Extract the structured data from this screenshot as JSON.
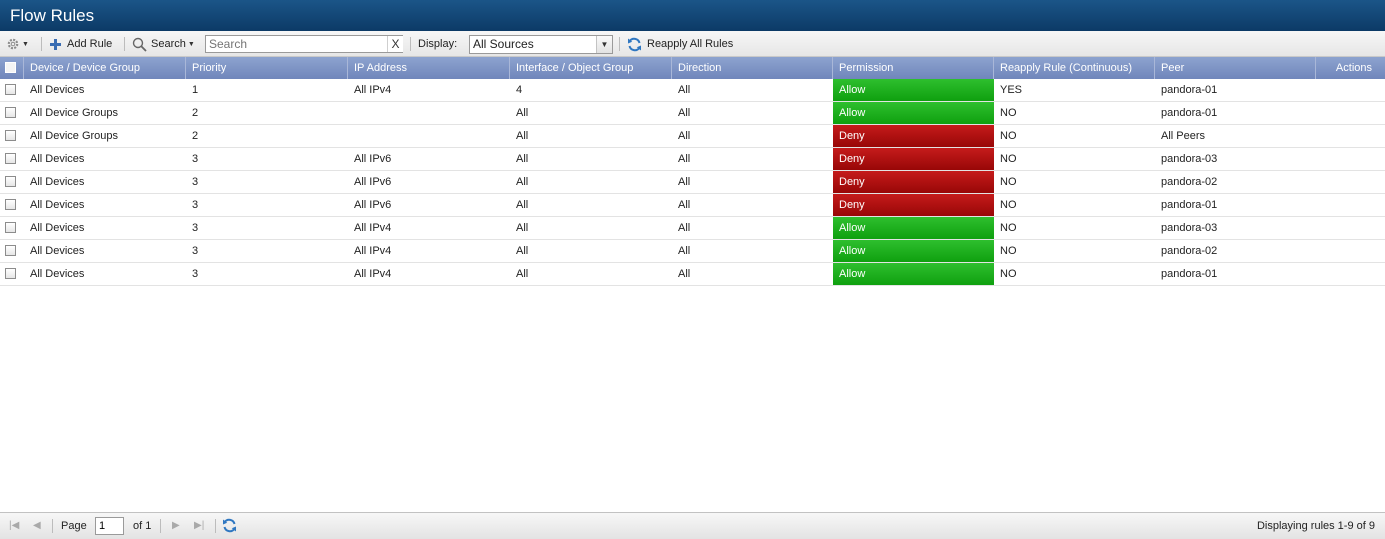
{
  "window": {
    "title": "Flow Rules"
  },
  "toolbar": {
    "settings_icon": "gear-icon",
    "add_rule_label": "Add Rule",
    "search_menu_label": "Search",
    "search_placeholder": "Search",
    "search_clear": "X",
    "display_label": "Display:",
    "display_value": "All Sources",
    "reapply_all_label": "Reapply All Rules"
  },
  "columns": [
    "Device / Device Group",
    "Priority",
    "IP Address",
    "Interface / Object Group",
    "Direction",
    "Permission",
    "Reapply Rule (Continuous)",
    "Peer",
    "Actions"
  ],
  "rows": [
    {
      "device": "All Devices",
      "priority": "1",
      "ip": "All IPv4",
      "iface": "4",
      "direction": "All",
      "permission": "Allow",
      "reapply": "YES",
      "peer": "pandora-01"
    },
    {
      "device": "All Device Groups",
      "priority": "2",
      "ip": "",
      "iface": "All",
      "direction": "All",
      "permission": "Allow",
      "reapply": "NO",
      "peer": "pandora-01"
    },
    {
      "device": "All Device Groups",
      "priority": "2",
      "ip": "",
      "iface": "All",
      "direction": "All",
      "permission": "Deny",
      "reapply": "NO",
      "peer": "All Peers"
    },
    {
      "device": "All Devices",
      "priority": "3",
      "ip": "All IPv6",
      "iface": "All",
      "direction": "All",
      "permission": "Deny",
      "reapply": "NO",
      "peer": "pandora-03"
    },
    {
      "device": "All Devices",
      "priority": "3",
      "ip": "All IPv6",
      "iface": "All",
      "direction": "All",
      "permission": "Deny",
      "reapply": "NO",
      "peer": "pandora-02"
    },
    {
      "device": "All Devices",
      "priority": "3",
      "ip": "All IPv6",
      "iface": "All",
      "direction": "All",
      "permission": "Deny",
      "reapply": "NO",
      "peer": "pandora-01"
    },
    {
      "device": "All Devices",
      "priority": "3",
      "ip": "All IPv4",
      "iface": "All",
      "direction": "All",
      "permission": "Allow",
      "reapply": "NO",
      "peer": "pandora-03"
    },
    {
      "device": "All Devices",
      "priority": "3",
      "ip": "All IPv4",
      "iface": "All",
      "direction": "All",
      "permission": "Allow",
      "reapply": "NO",
      "peer": "pandora-02"
    },
    {
      "device": "All Devices",
      "priority": "3",
      "ip": "All IPv4",
      "iface": "All",
      "direction": "All",
      "permission": "Allow",
      "reapply": "NO",
      "peer": "pandora-01"
    }
  ],
  "pager": {
    "page_label": "Page",
    "page_value": "1",
    "of_label": "of 1",
    "status": "Displaying rules 1-9 of 9"
  },
  "colors": {
    "title_bar": "#0c3a66",
    "header": "#7086bb",
    "allow": "#0fa00f",
    "deny": "#980707"
  }
}
